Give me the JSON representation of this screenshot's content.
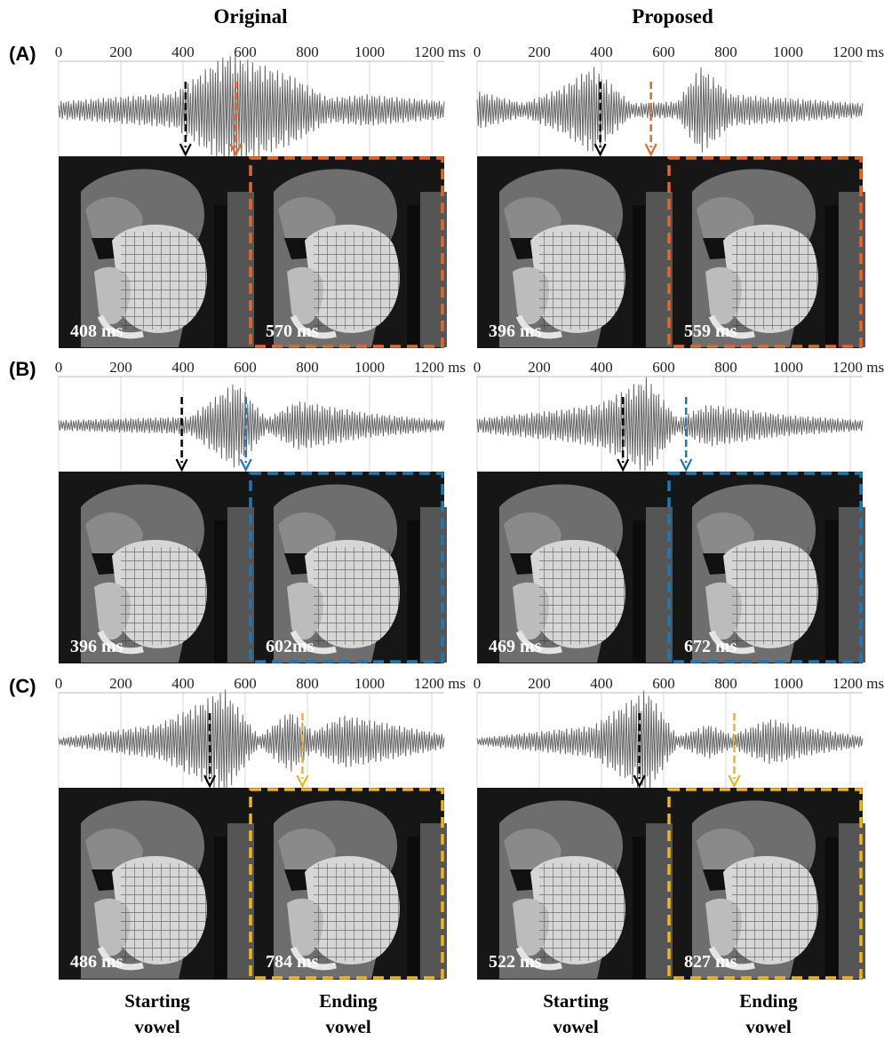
{
  "column_titles": [
    "Original",
    "Proposed"
  ],
  "rows": [
    {
      "label": "(A)",
      "color": "#e5662d",
      "panels": [
        {
          "start_time": "408 ms",
          "end_time": "570 ms",
          "start_ms": 408,
          "end_ms": 570
        },
        {
          "start_time": "396 ms",
          "end_time": "559 ms",
          "start_ms": 396,
          "end_ms": 559
        }
      ]
    },
    {
      "label": "(B)",
      "color": "#1f77b4",
      "panels": [
        {
          "start_time": "396 ms",
          "end_time": "602ms",
          "start_ms": 396,
          "end_ms": 602
        },
        {
          "start_time": "469 ms",
          "end_time": "672 ms",
          "start_ms": 469,
          "end_ms": 672
        }
      ]
    },
    {
      "label": "(C)",
      "color": "#f0b323",
      "panels": [
        {
          "start_time": "486 ms",
          "end_time": "784 ms",
          "start_ms": 486,
          "end_ms": 784
        },
        {
          "start_time": "522 ms",
          "end_time": "827 ms",
          "start_ms": 522,
          "end_ms": 827
        }
      ]
    }
  ],
  "axis_ticks": [
    "0",
    "200",
    "400",
    "600",
    "800",
    "1000",
    "1200 ms"
  ],
  "footer_labels": [
    {
      "line1": "Starting",
      "line2": "vowel"
    },
    {
      "line1": "Ending",
      "line2": "vowel"
    },
    {
      "line1": "Starting",
      "line2": "vowel"
    },
    {
      "line1": "Ending",
      "line2": "vowel"
    }
  ],
  "start_marker_color": "#000000",
  "waveform_color": "#666666"
}
